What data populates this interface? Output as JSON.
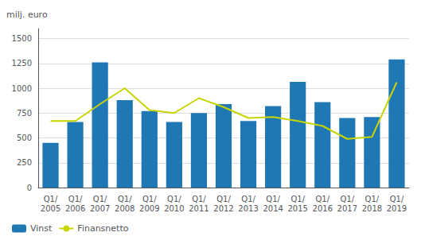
{
  "chart_data": {
    "type": "bar",
    "ylabel": "milj. euro",
    "categories": [
      "Q1/\n2005",
      "Q1/\n2006",
      "Q1/\n2007",
      "Q1/\n2008",
      "Q1/\n2009",
      "Q1/\n2010",
      "Q1/\n2011",
      "Q1/\n2012",
      "Q1/\n2013",
      "Q1/\n2014",
      "Q1/\n2015",
      "Q1/\n2016",
      "Q1/\n2017",
      "Q1/\n2018",
      "Q1/\n2019"
    ],
    "series": [
      {
        "name": "Vinst",
        "type": "bar",
        "color": "#1f77b4",
        "values": [
          450,
          660,
          1260,
          880,
          770,
          660,
          750,
          840,
          670,
          820,
          1065,
          860,
          700,
          710,
          1290
        ]
      },
      {
        "name": "Finansnetto",
        "type": "line",
        "color": "#c8d400",
        "values": [
          670,
          670,
          840,
          1000,
          780,
          750,
          900,
          810,
          700,
          710,
          670,
          620,
          490,
          510,
          1060
        ]
      }
    ],
    "ylim": [
      0,
      1600
    ],
    "yticks": [
      0,
      250,
      500,
      750,
      1000,
      1250,
      1500
    ],
    "grid": true,
    "legend": "lower left"
  }
}
